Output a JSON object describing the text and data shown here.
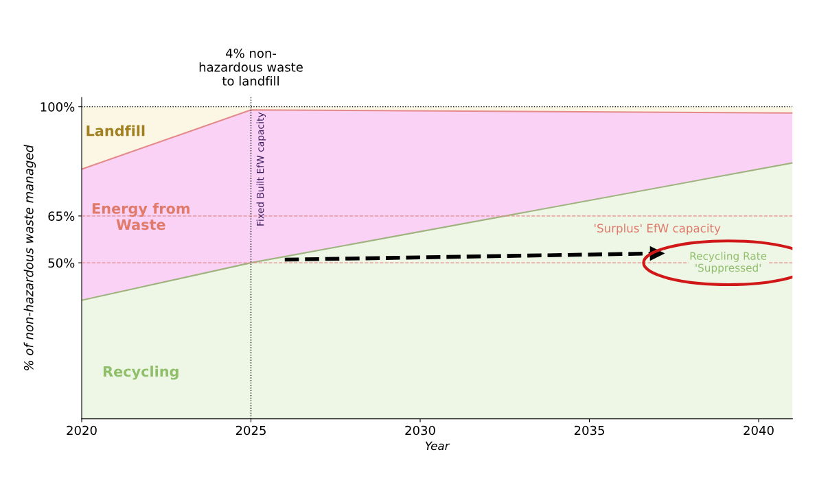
{
  "chart_data": {
    "type": "area",
    "stacked": true,
    "xlabel": "Year",
    "ylabel": "% of non-hazardous waste managed",
    "x": [
      2020,
      2025,
      2041
    ],
    "series": [
      {
        "name": "Recycling",
        "color": "#eef6e6",
        "values": [
          38,
          50,
          82
        ]
      },
      {
        "name": "Energy from Waste",
        "color": "#f9d2f6",
        "values": [
          42,
          49,
          16
        ]
      },
      {
        "name": "Landfill",
        "color": "#fbf7e4",
        "values": [
          20,
          1,
          2
        ]
      },
      {
        "type": "line",
        "line_style": "dashed",
        "color": "#000000",
        "x": [
          2026,
          2037
        ],
        "values": [
          51,
          53
        ]
      }
    ],
    "xlim": [
      2020,
      2041
    ],
    "ylim": [
      0,
      103
    ],
    "xticks": [
      2020,
      2025,
      2030,
      2035,
      2040
    ],
    "yticks": [
      {
        "value": 50,
        "label": "50%"
      },
      {
        "value": 65,
        "label": "65%"
      },
      {
        "value": 100,
        "label": "100%"
      }
    ],
    "ref_lines": [
      {
        "axis": "x",
        "value": 2025,
        "label": "4% non-\nhazardous waste\nto landfill",
        "line_style": "dotted",
        "color": "#000000"
      },
      {
        "axis": "y",
        "value": 100,
        "label": null,
        "line_style": "dotted",
        "color": "#000000"
      },
      {
        "axis": "y",
        "value": 65,
        "label": null,
        "line_style": "dashed",
        "color": "#e58a8a"
      },
      {
        "axis": "y",
        "value": 50,
        "label": null,
        "line_style": "dashed",
        "color": "#e58a8a"
      }
    ],
    "annotations": [
      {
        "text": "Fixed Built EfW capacity",
        "x": 2025,
        "y": 80
      },
      "'Surplus' EfW capacity",
      "Recycling Rate 'Suppressed'"
    ],
    "grid": false,
    "legend": false
  }
}
